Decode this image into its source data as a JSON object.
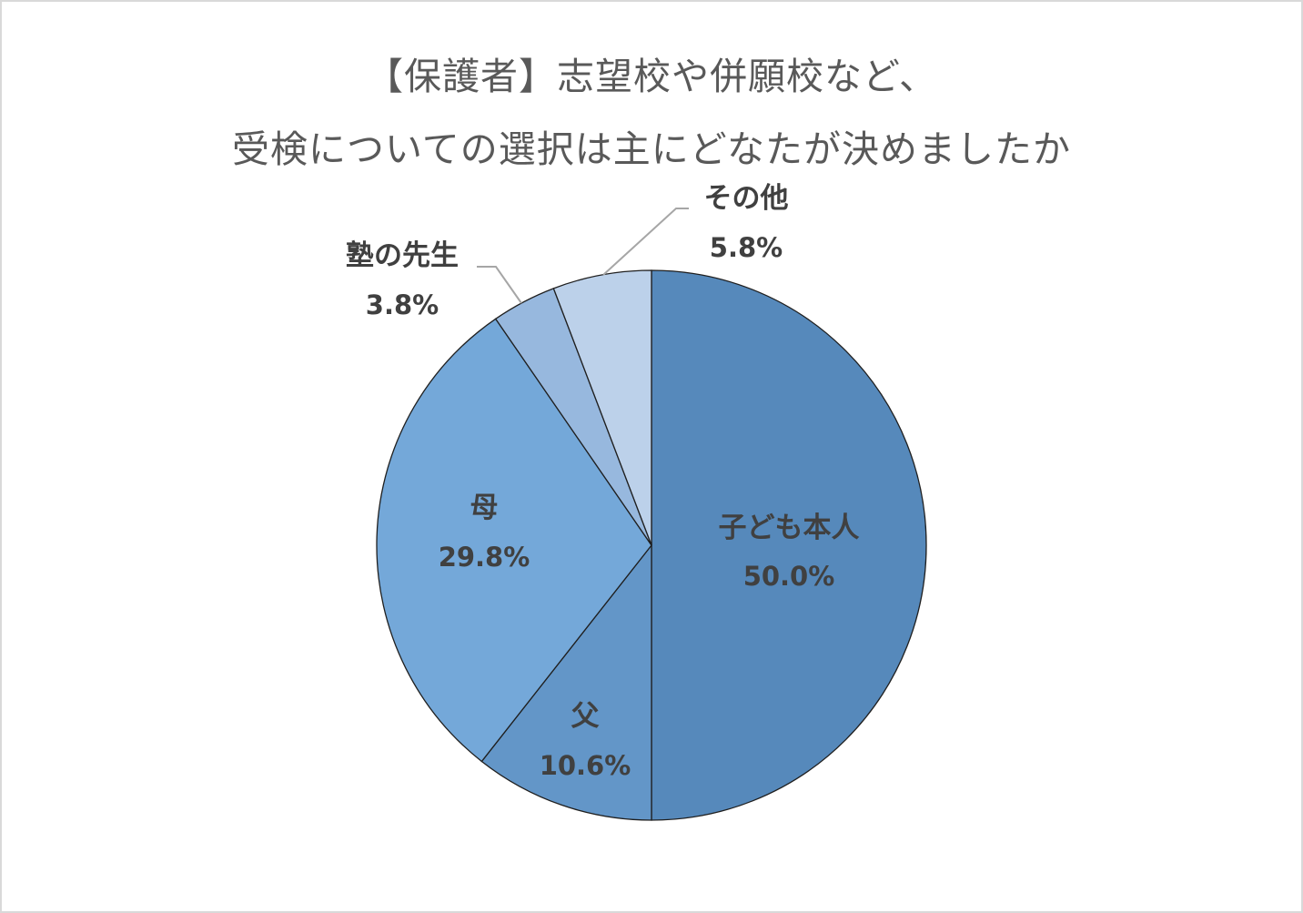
{
  "chart_data": {
    "type": "pie",
    "title_lines": [
      "【保護者】志望校や併願校など、",
      "受検についての選択は主にどなたが決めましたか"
    ],
    "slices": [
      {
        "label": "子ども本人",
        "value": 50.0,
        "value_label": "50.0%",
        "color": "#5689bb"
      },
      {
        "label": "父",
        "value": 10.6,
        "value_label": "10.6%",
        "color": "#6396c8"
      },
      {
        "label": "母",
        "value": 29.8,
        "value_label": "29.8%",
        "color": "#74a8d9"
      },
      {
        "label": "塾の先生",
        "value": 3.8,
        "value_label": "3.8%",
        "color": "#97b8de"
      },
      {
        "label": "その他",
        "value": 5.8,
        "value_label": "5.8%",
        "color": "#bcd1ea"
      }
    ],
    "start_angle": "12 o'clock",
    "direction": "clockwise",
    "legend": "none",
    "label_text_color": "#404040",
    "title_color": "#595959",
    "slice_border_color": "#1f1f1f",
    "leader_line_color": "#a6a6a6"
  }
}
